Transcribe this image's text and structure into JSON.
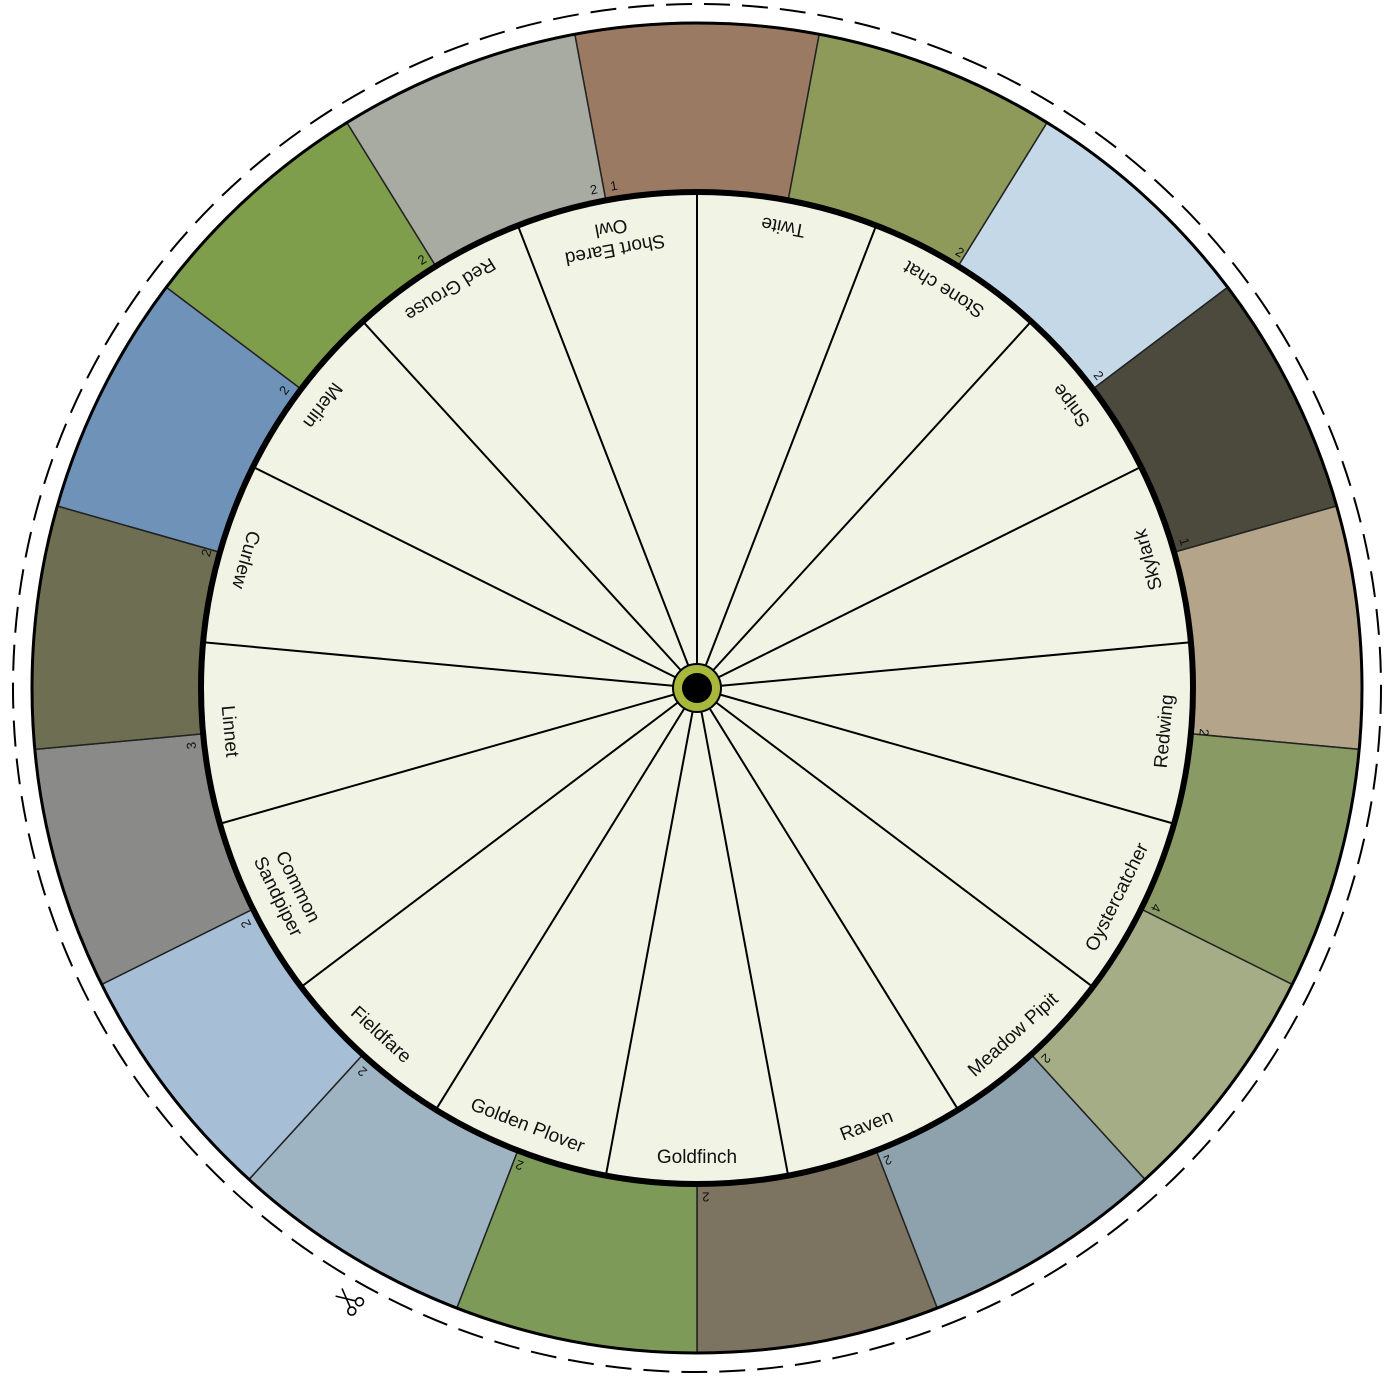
{
  "wheel": {
    "segments": [
      [
        "Twite"
      ],
      [
        "Stone chat"
      ],
      [
        "Snipe"
      ],
      [
        "Skylark"
      ],
      [
        "Redwing"
      ],
      [
        "Oystercatcher"
      ],
      [
        "Meadow Pipit"
      ],
      [
        "Raven"
      ],
      [
        "Goldfinch"
      ],
      [
        "Golden Plover"
      ],
      [
        "Fieldfare"
      ],
      [
        "Common",
        "Sandpiper"
      ],
      [
        "Linnet"
      ],
      [
        "Curlew"
      ],
      [
        "Merlin"
      ],
      [
        "Red Grouse"
      ],
      [
        "Short Eared",
        "Owl"
      ]
    ],
    "photo_numbers": [
      "2",
      "1",
      "2",
      "2",
      "1",
      "2",
      "4",
      "2",
      "2",
      "2",
      "2",
      "2",
      "2",
      "3",
      "2",
      "2",
      "2"
    ]
  }
}
